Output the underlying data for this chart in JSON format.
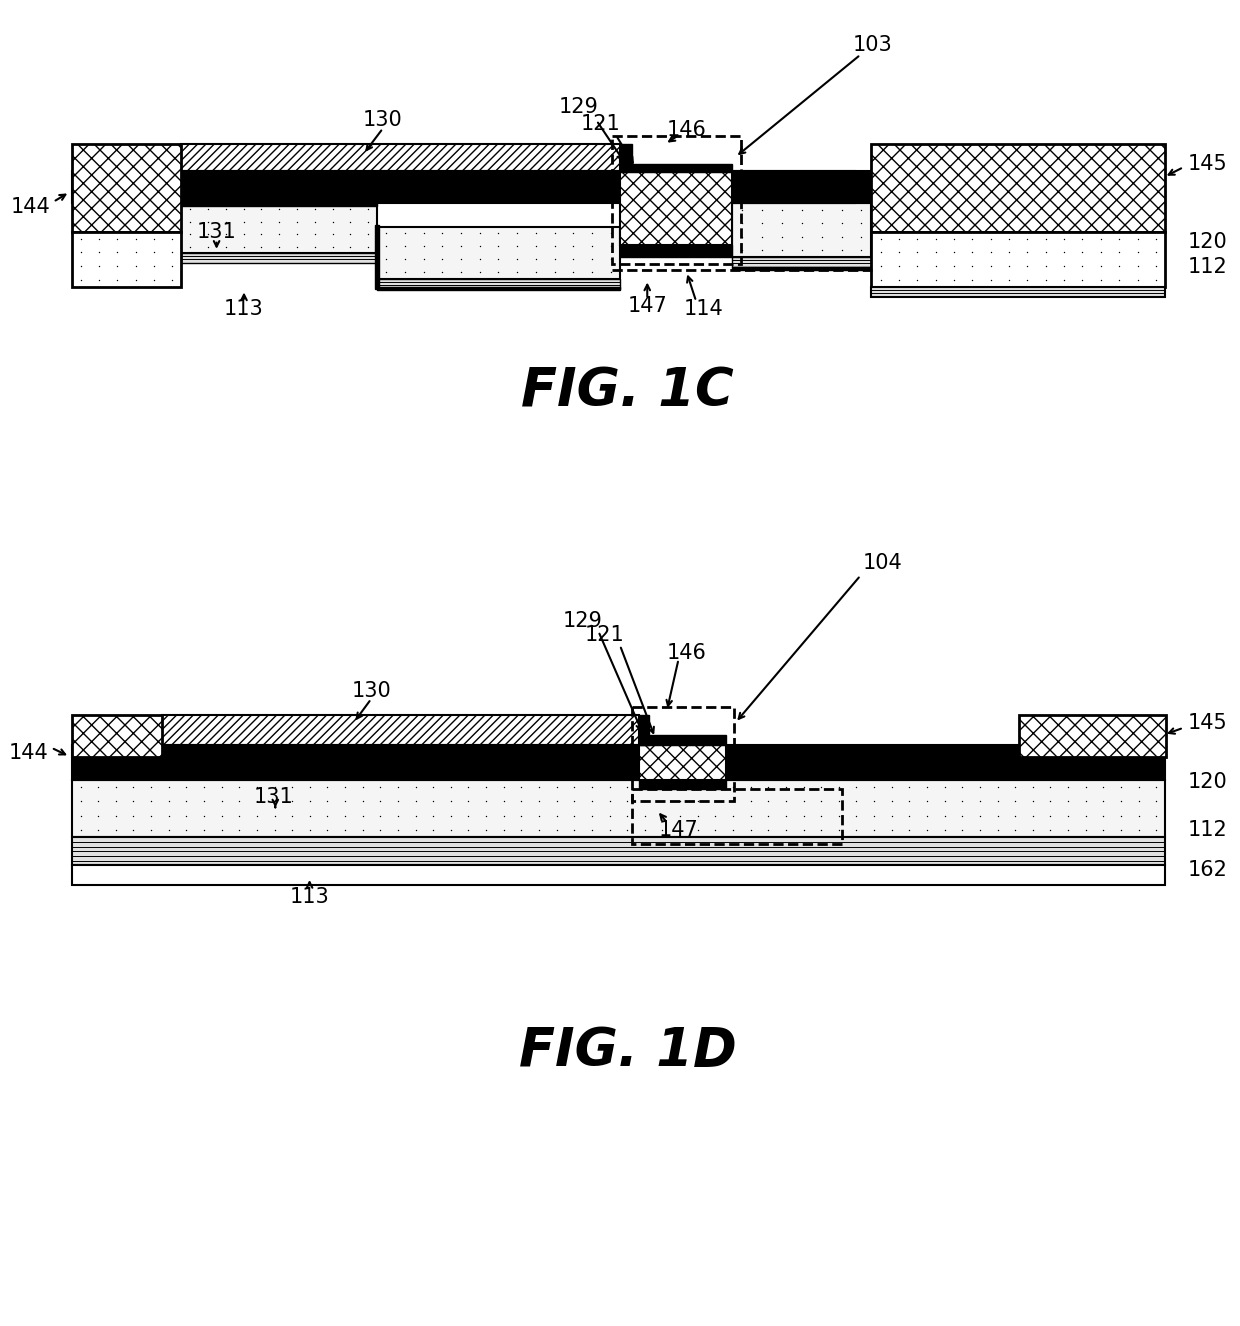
{
  "fig_width": 12.4,
  "fig_height": 13.26,
  "bg_color": "#ffffff",
  "black": "#000000",
  "white": "#ffffff"
}
